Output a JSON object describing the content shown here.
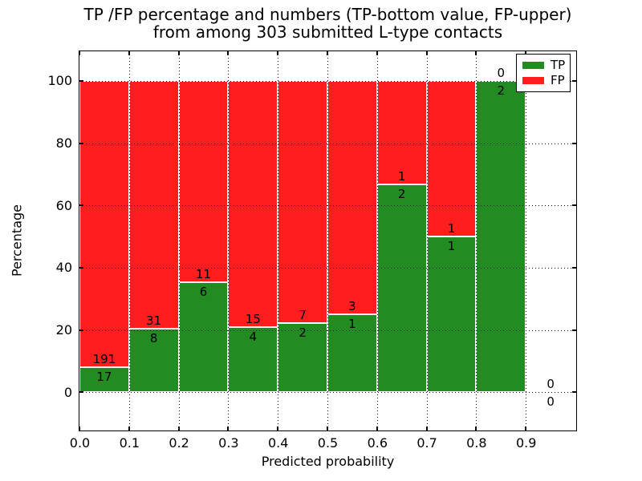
{
  "chart_data": {
    "type": "bar",
    "stacking": "percentage",
    "title_line1": "TP /FP percentage and numbers (TP-bottom value, FP-upper)",
    "title_line2": "from among 303 submitted L-type contacts",
    "xlabel": "Predicted probability",
    "ylabel": "Percentage",
    "total_submitted": 303,
    "xlim": [
      0.0,
      1.0
    ],
    "ylim": [
      -12,
      109.5
    ],
    "bin_edges": [
      0.0,
      0.1,
      0.2,
      0.3,
      0.4,
      0.5,
      0.6,
      0.7,
      0.8,
      0.9,
      1.0
    ],
    "x_ticks": [
      {
        "value": 0.0,
        "label": "0.0"
      },
      {
        "value": 0.1,
        "label": "0.1"
      },
      {
        "value": 0.2,
        "label": "0.2"
      },
      {
        "value": 0.3,
        "label": "0.3"
      },
      {
        "value": 0.4,
        "label": "0.4"
      },
      {
        "value": 0.5,
        "label": "0.5"
      },
      {
        "value": 0.6,
        "label": "0.6"
      },
      {
        "value": 0.7,
        "label": "0.7"
      },
      {
        "value": 0.8,
        "label": "0.8"
      },
      {
        "value": 0.9,
        "label": "0.9"
      }
    ],
    "y_ticks": [
      {
        "value": 0,
        "label": "0"
      },
      {
        "value": 20,
        "label": "20"
      },
      {
        "value": 40,
        "label": "40"
      },
      {
        "value": 60,
        "label": "60"
      },
      {
        "value": 80,
        "label": "80"
      },
      {
        "value": 100,
        "label": "100"
      }
    ],
    "series": [
      {
        "name": "TP",
        "color": "#228b22",
        "values": [
          17,
          8,
          6,
          4,
          2,
          1,
          2,
          1,
          2,
          0
        ]
      },
      {
        "name": "FP",
        "color": "#ff1e1e",
        "values": [
          191,
          31,
          11,
          15,
          7,
          3,
          1,
          1,
          0,
          0
        ]
      }
    ],
    "tp_percent_per_bin": [
      8.2,
      20.5,
      35.3,
      21.1,
      22.2,
      25.0,
      66.7,
      50.0,
      100.0,
      0.0
    ],
    "bar_edge_color": "#ffffff",
    "grid_style": "dotted",
    "legend": {
      "position": "upper right",
      "entries": [
        "TP",
        "FP"
      ]
    }
  }
}
